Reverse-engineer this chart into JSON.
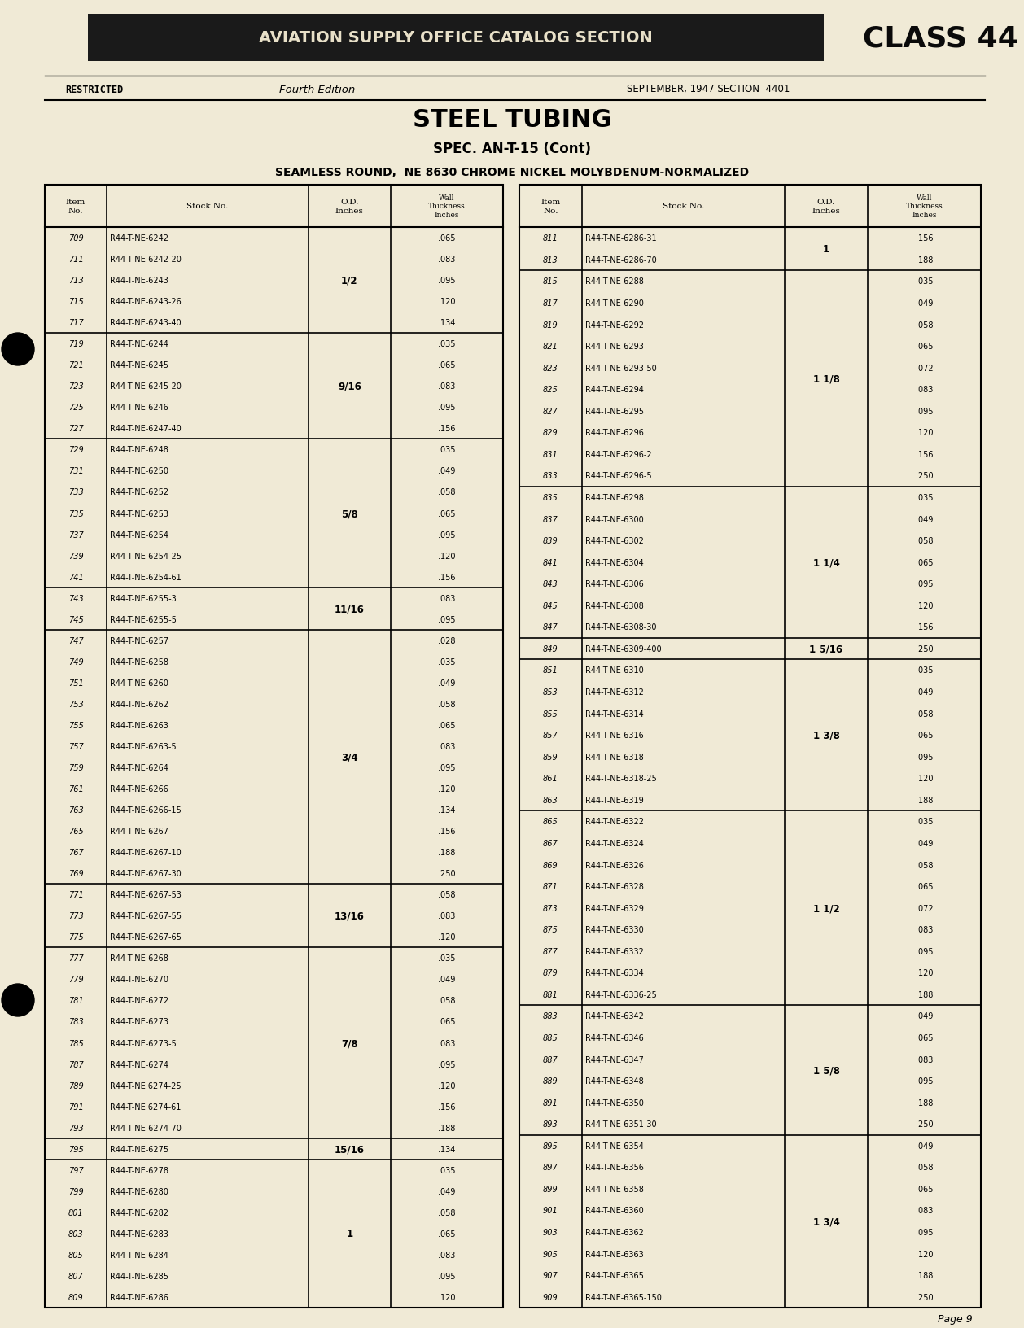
{
  "bg_color": "#f0ead6",
  "header_bg": "#1a1a1a",
  "header_text_color": "#e8e0c8",
  "header_title": "AVIATION SUPPLY OFFICE CATALOG SECTION",
  "header_class": "CLASS 44",
  "restricted": "RESTRICTED",
  "edition": "Fourth Edition",
  "date_section": "SEPTEMBER, 1947 SECTION  4401",
  "main_title": "STEEL TUBING",
  "subtitle": "SPEC. AN-T-15 (Cont)",
  "subsection": "SEAMLESS ROUND,  NE 8630 CHROME NICKEL MOLYBDENUM-NORMALIZED",
  "left_table": [
    [
      "709",
      "R44-T-NE-6242",
      ".065"
    ],
    [
      "711",
      "R44-T-NE-6242-20",
      ".083"
    ],
    [
      "713",
      "R44-T-NE-6243",
      ".095"
    ],
    [
      "715",
      "R44-T-NE-6243-26",
      ".120"
    ],
    [
      "717",
      "R44-T-NE-6243-40",
      ".134"
    ],
    [
      "719",
      "R44-T-NE-6244",
      ".035"
    ],
    [
      "721",
      "R44-T-NE-6245",
      ".065"
    ],
    [
      "723",
      "R44-T-NE-6245-20",
      ".083"
    ],
    [
      "725",
      "R44-T-NE-6246",
      ".095"
    ],
    [
      "727",
      "R44-T-NE-6247-40",
      ".156"
    ],
    [
      "729",
      "R44-T-NE-6248",
      ".035"
    ],
    [
      "731",
      "R44-T-NE-6250",
      ".049"
    ],
    [
      "733",
      "R44-T-NE-6252",
      ".058"
    ],
    [
      "735",
      "R44-T-NE-6253",
      ".065"
    ],
    [
      "737",
      "R44-T-NE-6254",
      ".095"
    ],
    [
      "739",
      "R44-T-NE-6254-25",
      ".120"
    ],
    [
      "741",
      "R44-T-NE-6254-61",
      ".156"
    ],
    [
      "743",
      "R44-T-NE-6255-3",
      ".083"
    ],
    [
      "745",
      "R44-T-NE-6255-5",
      ".095"
    ],
    [
      "747",
      "R44-T-NE-6257",
      ".028"
    ],
    [
      "749",
      "R44-T-NE-6258",
      ".035"
    ],
    [
      "751",
      "R44-T-NE-6260",
      ".049"
    ],
    [
      "753",
      "R44-T-NE-6262",
      ".058"
    ],
    [
      "755",
      "R44-T-NE-6263",
      ".065"
    ],
    [
      "757",
      "R44-T-NE-6263-5",
      ".083"
    ],
    [
      "759",
      "R44-T-NE-6264",
      ".095"
    ],
    [
      "761",
      "R44-T-NE-6266",
      ".120"
    ],
    [
      "763",
      "R44-T-NE-6266-15",
      ".134"
    ],
    [
      "765",
      "R44-T-NE-6267",
      ".156"
    ],
    [
      "767",
      "R44-T-NE-6267-10",
      ".188"
    ],
    [
      "769",
      "R44-T-NE-6267-30",
      ".250"
    ],
    [
      "771",
      "R44-T-NE-6267-53",
      ".058"
    ],
    [
      "773",
      "R44-T-NE-6267-55",
      ".083"
    ],
    [
      "775",
      "R44-T-NE-6267-65",
      ".120"
    ],
    [
      "777",
      "R44-T-NE-6268",
      ".035"
    ],
    [
      "779",
      "R44-T-NE-6270",
      ".049"
    ],
    [
      "781",
      "R44-T-NE-6272",
      ".058"
    ],
    [
      "783",
      "R44-T-NE-6273",
      ".065"
    ],
    [
      "785",
      "R44-T-NE-6273-5",
      ".083"
    ],
    [
      "787",
      "R44-T-NE-6274",
      ".095"
    ],
    [
      "789",
      "R44-T-NE 6274-25",
      ".120"
    ],
    [
      "791",
      "R44-T-NE 6274-61",
      ".156"
    ],
    [
      "793",
      "R44-T-NE-6274-70",
      ".188"
    ],
    [
      "795",
      "R44-T-NE-6275",
      ".134"
    ],
    [
      "797",
      "R44-T-NE-6278",
      ".035"
    ],
    [
      "799",
      "R44-T-NE-6280",
      ".049"
    ],
    [
      "801",
      "R44-T-NE-6282",
      ".058"
    ],
    [
      "803",
      "R44-T-NE-6283",
      ".065"
    ],
    [
      "805",
      "R44-T-NE-6284",
      ".083"
    ],
    [
      "807",
      "R44-T-NE-6285",
      ".095"
    ],
    [
      "809",
      "R44-T-NE-6286",
      ".120"
    ]
  ],
  "left_groups": [
    {
      "od": "1/2",
      "r0": 0,
      "r1": 4
    },
    {
      "od": "9/16",
      "r0": 5,
      "r1": 9
    },
    {
      "od": "5/8",
      "r0": 10,
      "r1": 16
    },
    {
      "od": "11/16",
      "r0": 17,
      "r1": 18
    },
    {
      "od": "3/4",
      "r0": 19,
      "r1": 30
    },
    {
      "od": "13/16",
      "r0": 31,
      "r1": 33
    },
    {
      "od": "7/8",
      "r0": 34,
      "r1": 42
    },
    {
      "od": "15/16",
      "r0": 43,
      "r1": 43
    },
    {
      "od": "1",
      "r0": 44,
      "r1": 50
    }
  ],
  "right_table": [
    [
      "811",
      "R44-T-NE-6286-31",
      ".156"
    ],
    [
      "813",
      "R44-T-NE-6286-70",
      ".188"
    ],
    [
      "815",
      "R44-T-NE-6288",
      ".035"
    ],
    [
      "817",
      "R44-T-NE-6290",
      ".049"
    ],
    [
      "819",
      "R44-T-NE-6292",
      ".058"
    ],
    [
      "821",
      "R44-T-NE-6293",
      ".065"
    ],
    [
      "823",
      "R44-T-NE-6293-50",
      ".072"
    ],
    [
      "825",
      "R44-T-NE-6294",
      ".083"
    ],
    [
      "827",
      "R44-T-NE-6295",
      ".095"
    ],
    [
      "829",
      "R44-T-NE-6296",
      ".120"
    ],
    [
      "831",
      "R44-T-NE-6296-2",
      ".156"
    ],
    [
      "833",
      "R44-T-NE-6296-5",
      ".250"
    ],
    [
      "835",
      "R44-T-NE-6298",
      ".035"
    ],
    [
      "837",
      "R44-T-NE-6300",
      ".049"
    ],
    [
      "839",
      "R44-T-NE-6302",
      ".058"
    ],
    [
      "841",
      "R44-T-NE-6304",
      ".065"
    ],
    [
      "843",
      "R44-T-NE-6306",
      ".095"
    ],
    [
      "845",
      "R44-T-NE-6308",
      ".120"
    ],
    [
      "847",
      "R44-T-NE-6308-30",
      ".156"
    ],
    [
      "849",
      "R44-T-NE-6309-400",
      ".250"
    ],
    [
      "851",
      "R44-T-NE-6310",
      ".035"
    ],
    [
      "853",
      "R44-T-NE-6312",
      ".049"
    ],
    [
      "855",
      "R44-T-NE-6314",
      ".058"
    ],
    [
      "857",
      "R44-T-NE-6316",
      ".065"
    ],
    [
      "859",
      "R44-T-NE-6318",
      ".095"
    ],
    [
      "861",
      "R44-T-NE-6318-25",
      ".120"
    ],
    [
      "863",
      "R44-T-NE-6319",
      ".188"
    ],
    [
      "865",
      "R44-T-NE-6322",
      ".035"
    ],
    [
      "867",
      "R44-T-NE-6324",
      ".049"
    ],
    [
      "869",
      "R44-T-NE-6326",
      ".058"
    ],
    [
      "871",
      "R44-T-NE-6328",
      ".065"
    ],
    [
      "873",
      "R44-T-NE-6329",
      ".072"
    ],
    [
      "875",
      "R44-T-NE-6330",
      ".083"
    ],
    [
      "877",
      "R44-T-NE-6332",
      ".095"
    ],
    [
      "879",
      "R44-T-NE-6334",
      ".120"
    ],
    [
      "881",
      "R44-T-NE-6336-25",
      ".188"
    ],
    [
      "883",
      "R44-T-NE-6342",
      ".049"
    ],
    [
      "885",
      "R44-T-NE-6346",
      ".065"
    ],
    [
      "887",
      "R44-T-NE-6347",
      ".083"
    ],
    [
      "889",
      "R44-T-NE-6348",
      ".095"
    ],
    [
      "891",
      "R44-T-NE-6350",
      ".188"
    ],
    [
      "893",
      "R44-T-NE-6351-30",
      ".250"
    ],
    [
      "895",
      "R44-T-NE-6354",
      ".049"
    ],
    [
      "897",
      "R44-T-NE-6356",
      ".058"
    ],
    [
      "899",
      "R44-T-NE-6358",
      ".065"
    ],
    [
      "901",
      "R44-T-NE-6360",
      ".083"
    ],
    [
      "903",
      "R44-T-NE-6362",
      ".095"
    ],
    [
      "905",
      "R44-T-NE-6363",
      ".120"
    ],
    [
      "907",
      "R44-T-NE-6365",
      ".188"
    ],
    [
      "909",
      "R44-T-NE-6365-150",
      ".250"
    ]
  ],
  "right_groups": [
    {
      "od": "1",
      "r0": 0,
      "r1": 1
    },
    {
      "od": "1 1/8",
      "r0": 2,
      "r1": 11
    },
    {
      "od": "1 1/4",
      "r0": 12,
      "r1": 18
    },
    {
      "od": "1 5/16",
      "r0": 19,
      "r1": 19
    },
    {
      "od": "1 3/8",
      "r0": 20,
      "r1": 26
    },
    {
      "od": "1 1/2",
      "r0": 27,
      "r1": 35
    },
    {
      "od": "1 5/8",
      "r0": 36,
      "r1": 41
    },
    {
      "od": "1 3/4",
      "r0": 42,
      "r1": 49
    }
  ],
  "page_number": "Page 9"
}
